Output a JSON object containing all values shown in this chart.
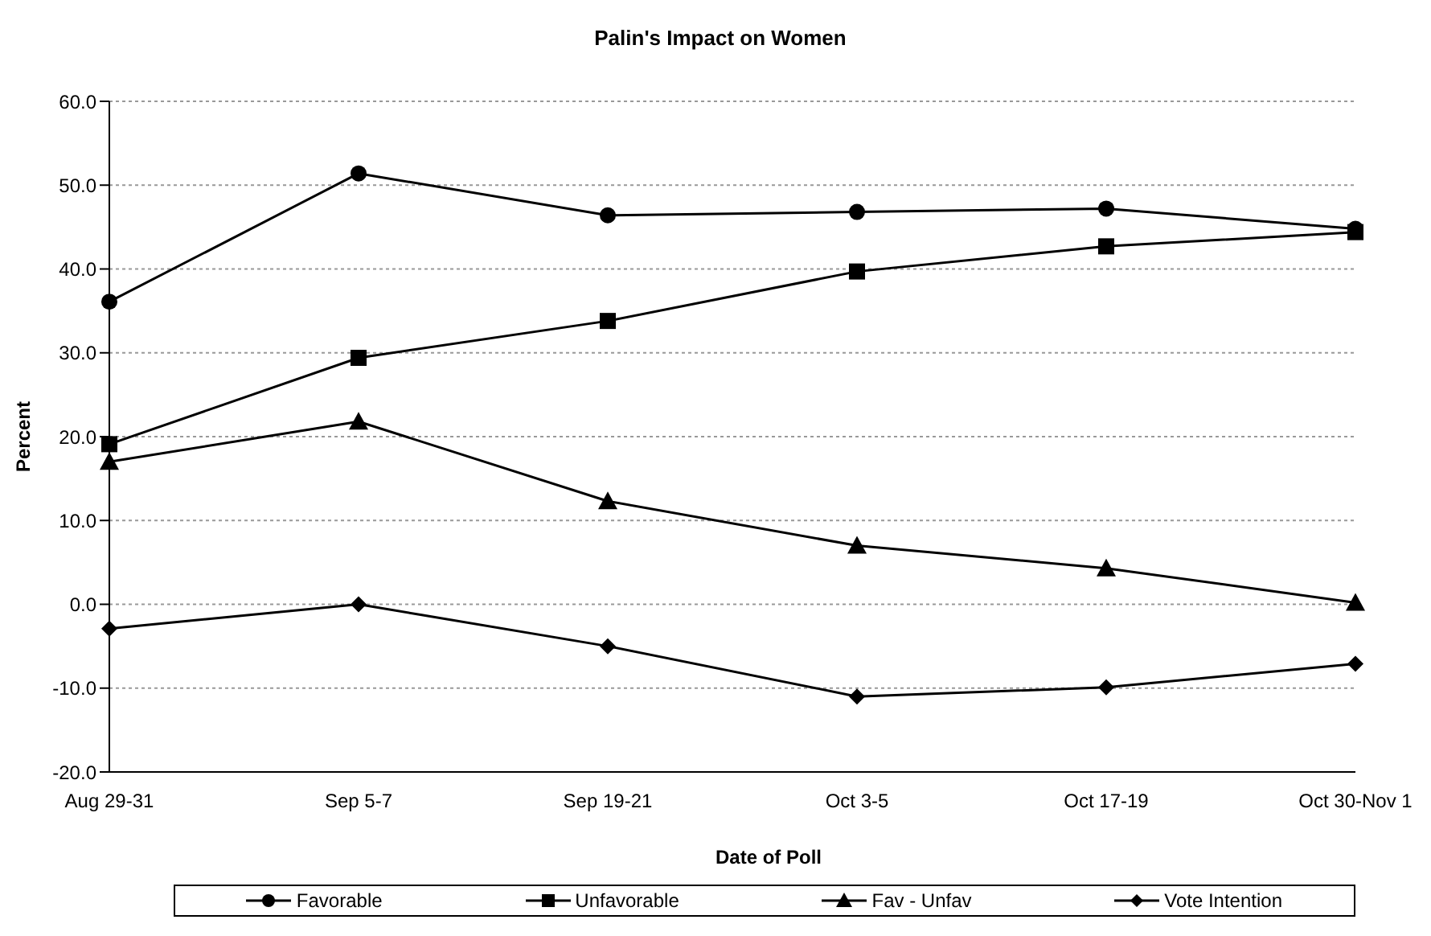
{
  "chart_data": {
    "type": "line",
    "title": "Palin's Impact on Women",
    "xlabel": "Date of Poll",
    "ylabel": "Percent",
    "categories": [
      "Aug 29-31",
      "Sep 5-7",
      "Sep 19-21",
      "Oct 3-5",
      "Oct 17-19",
      "Oct 30-Nov 1"
    ],
    "series": [
      {
        "name": "Favorable",
        "color": "#000000",
        "marker": "circle",
        "values": [
          36.1,
          51.4,
          46.4,
          46.8,
          47.2,
          44.8
        ]
      },
      {
        "name": "Unfavorable",
        "color": "#000000",
        "marker": "square",
        "values": [
          19.1,
          29.4,
          33.8,
          39.7,
          42.7,
          44.4
        ]
      },
      {
        "name": "Fav - Unfav",
        "color": "#000000",
        "marker": "triangle",
        "values": [
          17.0,
          21.8,
          12.3,
          7.0,
          4.3,
          0.2
        ]
      },
      {
        "name": "Vote Intention",
        "color": "#000000",
        "marker": "diamond",
        "values": [
          -2.9,
          0,
          -5.0,
          -11.0,
          -9.9,
          -7.1
        ]
      }
    ],
    "ylim": [
      -20,
      60
    ],
    "yticks": [
      {
        "value": -20,
        "label": "-20.0"
      },
      {
        "value": -10,
        "label": "-10.0"
      },
      {
        "value": 0,
        "label": "0.0"
      },
      {
        "value": 10,
        "label": "10.0"
      },
      {
        "value": 20,
        "label": "20.0"
      },
      {
        "value": 30,
        "label": "30.0"
      },
      {
        "value": 40,
        "label": "40.0"
      },
      {
        "value": 50,
        "label": "50.0"
      },
      {
        "value": 60,
        "label": "60.0"
      }
    ],
    "grid": "y",
    "legend": "bottom",
    "line_style": "solid"
  }
}
